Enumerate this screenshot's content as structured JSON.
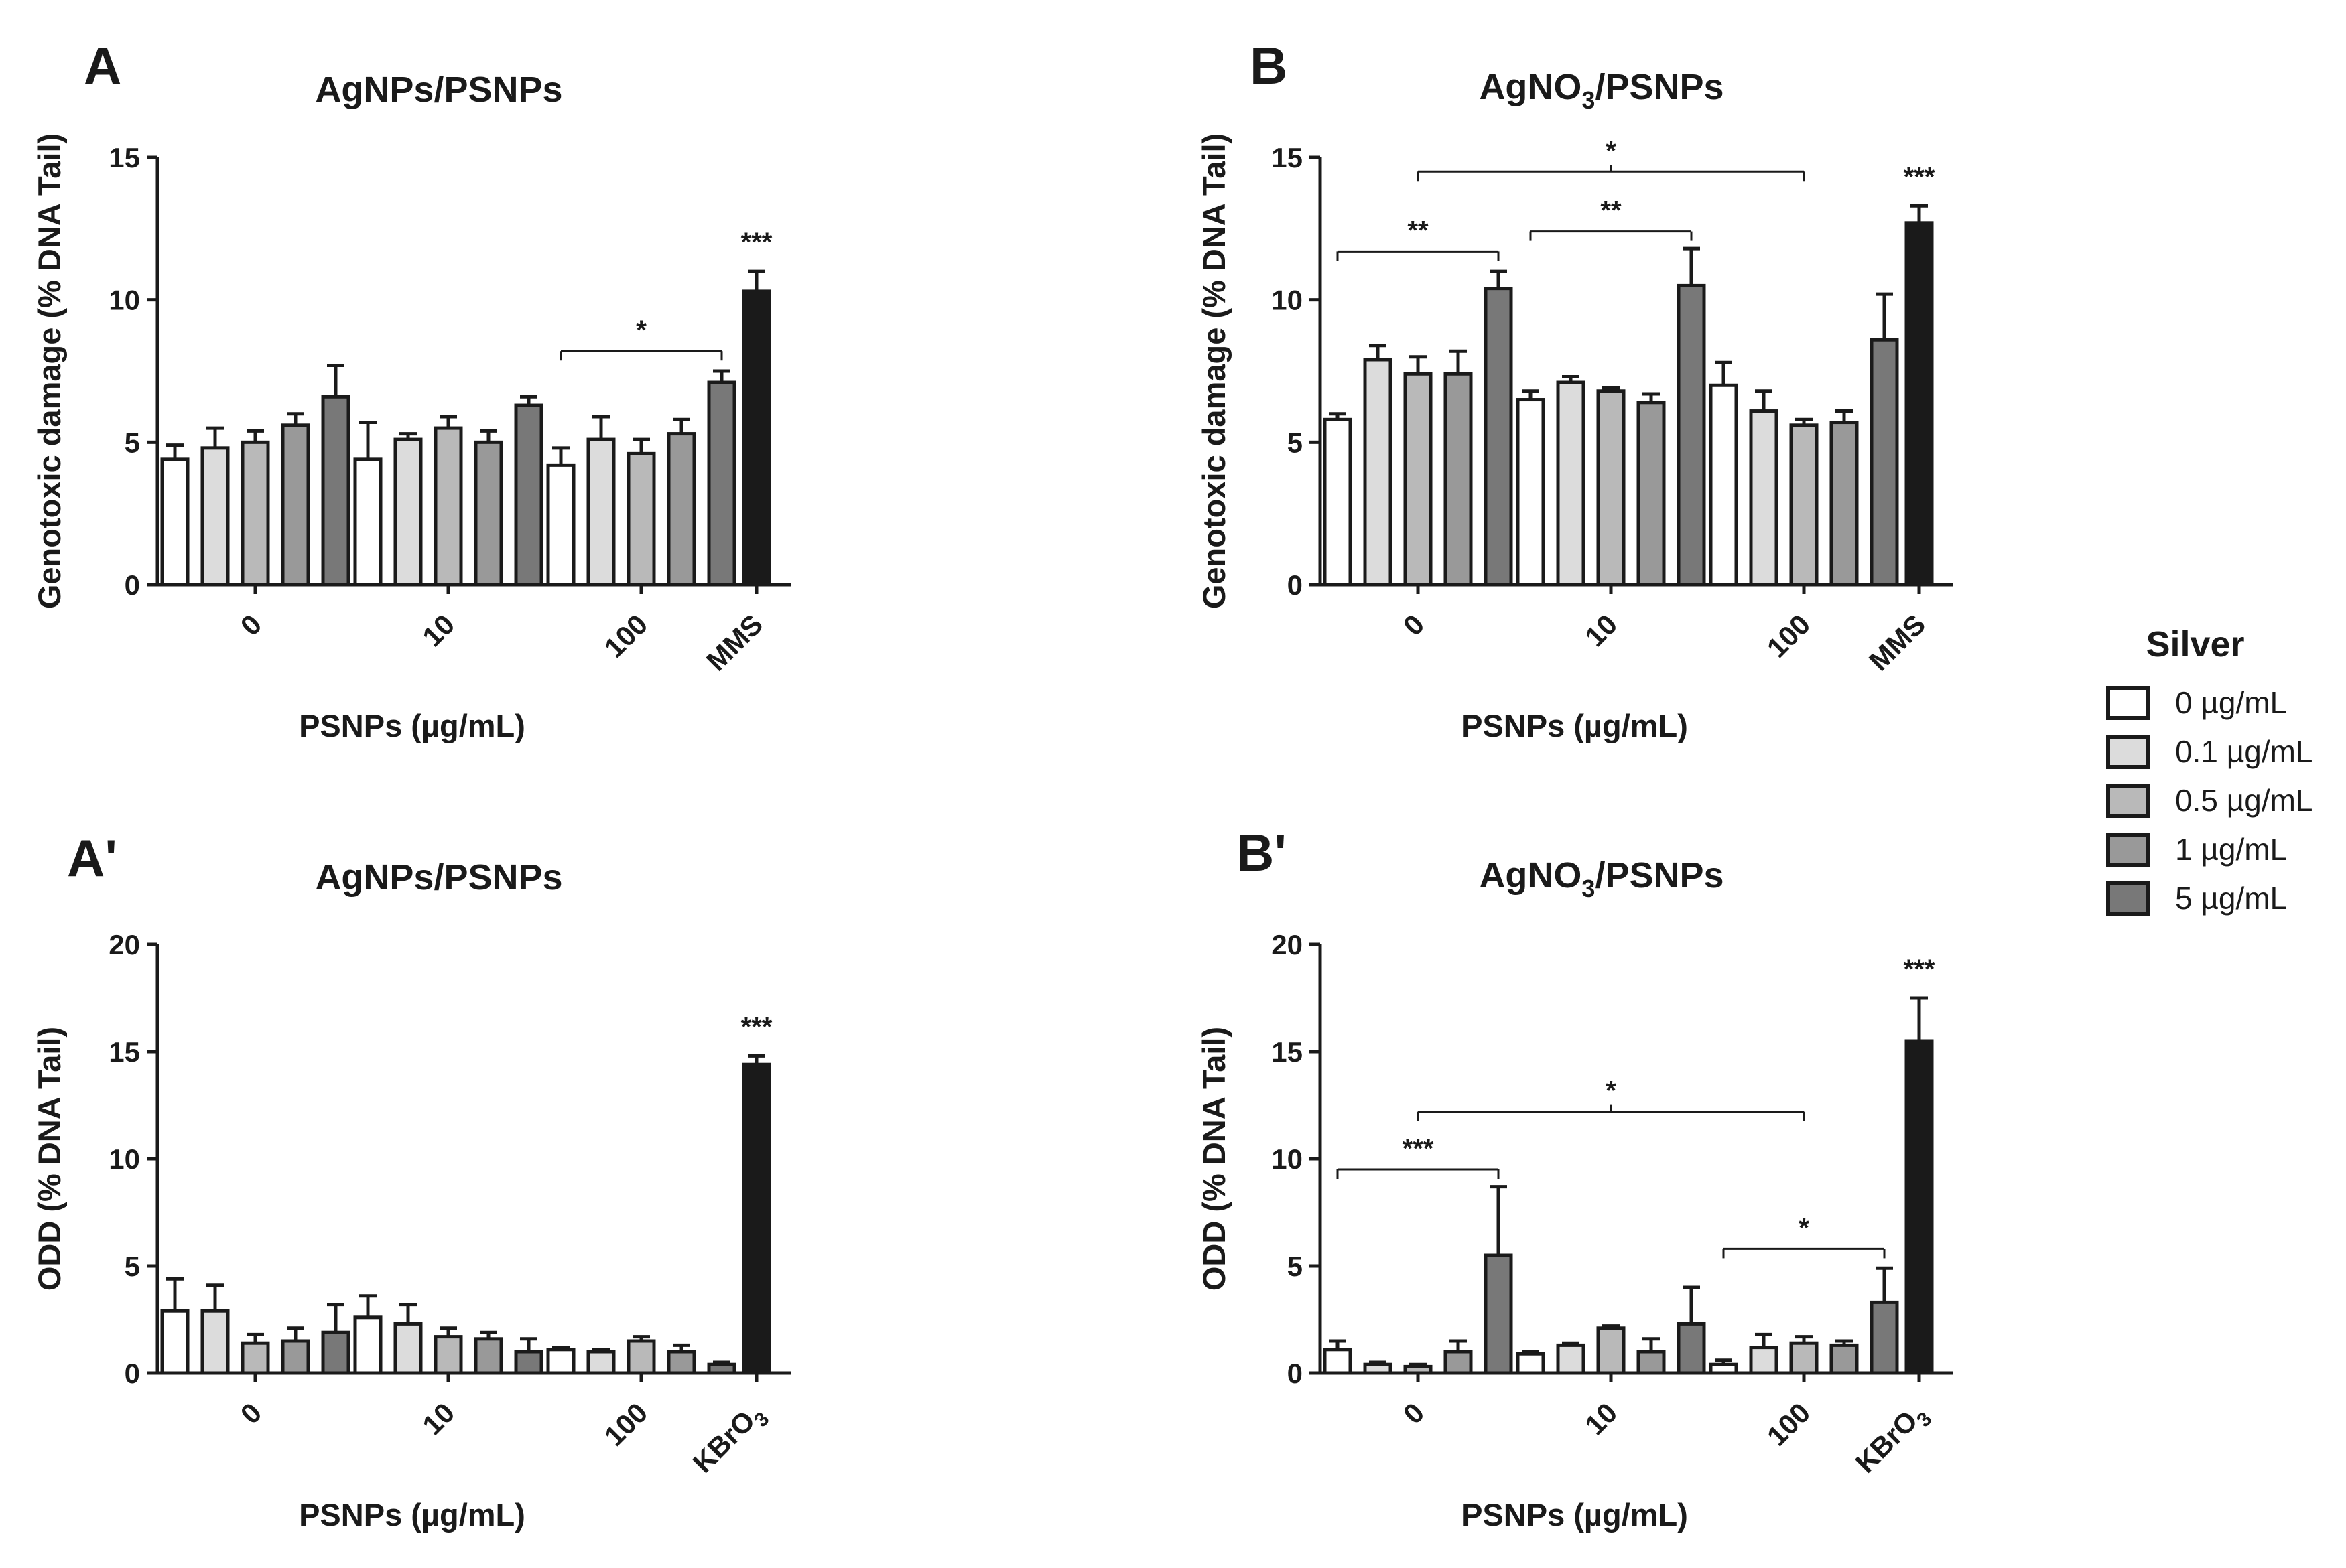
{
  "colors": {
    "0 µg/mL": "#ffffff",
    "0.1 µg/mL": "#dcdcdc",
    "0.5 µg/mL": "#b9b9b9",
    "1 µg/mL": "#999999",
    "5 µg/mL": "#787878",
    "control": "#1a1a1a",
    "ink": "#1a1a1a"
  },
  "legend": {
    "title": "Silver",
    "items": [
      "0 µg/mL",
      "0.1 µg/mL",
      "0.5 µg/mL",
      "1 µg/mL",
      "5 µg/mL"
    ]
  },
  "chart_data": [
    {
      "id": "A",
      "type": "bar",
      "panel_label": "A",
      "title": "AgNPs/PSNPs",
      "ylabel": "Genotoxic damage (% DNA Tail)",
      "xlabel": "PSNPs (µg/mL)",
      "ylim": [
        0,
        15
      ],
      "yticks": [
        0,
        5,
        10,
        15
      ],
      "categories": [
        "0",
        "10",
        "100"
      ],
      "series": [
        {
          "name": "0 µg/mL",
          "values": [
            4.4,
            4.4,
            4.2
          ],
          "errors": [
            0.5,
            1.3,
            0.6
          ]
        },
        {
          "name": "0.1 µg/mL",
          "values": [
            4.8,
            5.1,
            5.1
          ],
          "errors": [
            0.7,
            0.2,
            0.8
          ]
        },
        {
          "name": "0.5 µg/mL",
          "values": [
            5.0,
            5.5,
            4.6
          ],
          "errors": [
            0.4,
            0.4,
            0.5
          ]
        },
        {
          "name": "1 µg/mL",
          "values": [
            5.6,
            5.0,
            5.3
          ],
          "errors": [
            0.4,
            0.4,
            0.5
          ]
        },
        {
          "name": "5 µg/mL",
          "values": [
            6.6,
            6.3,
            7.1
          ],
          "errors": [
            1.1,
            0.3,
            0.4
          ]
        }
      ],
      "control": {
        "label": "MMS",
        "value": 10.3,
        "error": 0.7,
        "sig": "***"
      },
      "brackets": [
        {
          "from": [
            2,
            0
          ],
          "to": [
            2,
            4
          ],
          "y": 8.2,
          "label": "*",
          "ticks": "down"
        }
      ]
    },
    {
      "id": "B",
      "type": "bar",
      "panel_label": "B",
      "title": "AgNO3/PSNPs",
      "title_main": "AgNO",
      "title_sub": "3",
      "title_tail": "/PSNPs",
      "ylabel": "Genotoxic damage (% DNA Tail)",
      "xlabel": "PSNPs (µg/mL)",
      "ylim": [
        0,
        15
      ],
      "yticks": [
        0,
        5,
        10,
        15
      ],
      "categories": [
        "0",
        "10",
        "100"
      ],
      "series": [
        {
          "name": "0 µg/mL",
          "values": [
            5.8,
            6.5,
            7.0
          ],
          "errors": [
            0.2,
            0.3,
            0.8
          ]
        },
        {
          "name": "0.1 µg/mL",
          "values": [
            7.9,
            7.1,
            6.1
          ],
          "errors": [
            0.5,
            0.2,
            0.7
          ]
        },
        {
          "name": "0.5 µg/mL",
          "values": [
            7.4,
            6.8,
            5.6
          ],
          "errors": [
            0.6,
            0.1,
            0.2
          ]
        },
        {
          "name": "1 µg/mL",
          "values": [
            7.4,
            6.4,
            5.7
          ],
          "errors": [
            0.8,
            0.3,
            0.4
          ]
        },
        {
          "name": "5 µg/mL",
          "values": [
            10.4,
            10.5,
            8.6
          ],
          "errors": [
            0.6,
            1.3,
            1.6
          ]
        }
      ],
      "control": {
        "label": "MMS",
        "value": 12.7,
        "error": 0.6,
        "sig": "***"
      },
      "brackets": [
        {
          "from": [
            0,
            0
          ],
          "to": [
            0,
            4
          ],
          "y": 11.7,
          "label": "**",
          "ticks": "down"
        },
        {
          "from": [
            1,
            0
          ],
          "to": [
            1,
            4
          ],
          "y": 12.4,
          "label": "**",
          "ticks": "down"
        },
        {
          "from": [
            0,
            2
          ],
          "to": [
            2,
            2
          ],
          "y": 14.5,
          "label": "*",
          "ticks": "down",
          "mid_tick": "up"
        }
      ]
    },
    {
      "id": "A'",
      "type": "bar",
      "panel_label": "A'",
      "title": "AgNPs/PSNPs",
      "ylabel": "ODD (% DNA Tail)",
      "xlabel": "PSNPs (µg/mL)",
      "ylim": [
        0,
        20
      ],
      "yticks": [
        0,
        5,
        10,
        15,
        20
      ],
      "categories": [
        "0",
        "10",
        "100"
      ],
      "series": [
        {
          "name": "0 µg/mL",
          "values": [
            2.9,
            2.6,
            1.1
          ],
          "errors": [
            1.5,
            1.0,
            0.1
          ]
        },
        {
          "name": "0.1 µg/mL",
          "values": [
            2.9,
            2.3,
            1.0
          ],
          "errors": [
            1.2,
            0.9,
            0.1
          ]
        },
        {
          "name": "0.5 µg/mL",
          "values": [
            1.4,
            1.7,
            1.5
          ],
          "errors": [
            0.4,
            0.4,
            0.2
          ]
        },
        {
          "name": "1 µg/mL",
          "values": [
            1.5,
            1.6,
            1.0
          ],
          "errors": [
            0.6,
            0.3,
            0.3
          ]
        },
        {
          "name": "5 µg/mL",
          "values": [
            1.9,
            1.0,
            0.4
          ],
          "errors": [
            1.3,
            0.6,
            0.1
          ]
        }
      ],
      "control": {
        "label": "KBrO3",
        "value": 14.4,
        "error": 0.4,
        "sig": "***"
      },
      "brackets": []
    },
    {
      "id": "B'",
      "type": "bar",
      "panel_label": "B'",
      "title": "AgNO3/PSNPs",
      "title_main": "AgNO",
      "title_sub": "3",
      "title_tail": "/PSNPs",
      "ylabel": "ODD (% DNA Tail)",
      "xlabel": "PSNPs (µg/mL)",
      "ylim": [
        0,
        20
      ],
      "yticks": [
        0,
        5,
        10,
        15,
        20
      ],
      "categories": [
        "0",
        "10",
        "100"
      ],
      "series": [
        {
          "name": "0 µg/mL",
          "values": [
            1.1,
            0.9,
            0.4
          ],
          "errors": [
            0.4,
            0.1,
            0.2
          ]
        },
        {
          "name": "0.1 µg/mL",
          "values": [
            0.4,
            1.3,
            1.2
          ],
          "errors": [
            0.1,
            0.1,
            0.6
          ]
        },
        {
          "name": "0.5 µg/mL",
          "values": [
            0.3,
            2.1,
            1.4
          ],
          "errors": [
            0.1,
            0.1,
            0.3
          ]
        },
        {
          "name": "1 µg/mL",
          "values": [
            1.0,
            1.0,
            1.3
          ],
          "errors": [
            0.5,
            0.6,
            0.2
          ]
        },
        {
          "name": "5 µg/mL",
          "values": [
            5.5,
            2.3,
            3.3
          ],
          "errors": [
            3.2,
            1.7,
            1.6
          ]
        }
      ],
      "control": {
        "label": "KBrO3",
        "value": 15.5,
        "error": 2.0,
        "sig": "***"
      },
      "brackets": [
        {
          "from": [
            0,
            0
          ],
          "to": [
            0,
            4
          ],
          "y": 9.5,
          "label": "***",
          "ticks": "down"
        },
        {
          "from": [
            2,
            0
          ],
          "to": [
            2,
            4
          ],
          "y": 5.8,
          "label": "*",
          "ticks": "down"
        },
        {
          "from": [
            0,
            2
          ],
          "to": [
            2,
            2
          ],
          "y": 12.2,
          "label": "*",
          "ticks": "down",
          "mid_tick": "up"
        }
      ]
    }
  ]
}
